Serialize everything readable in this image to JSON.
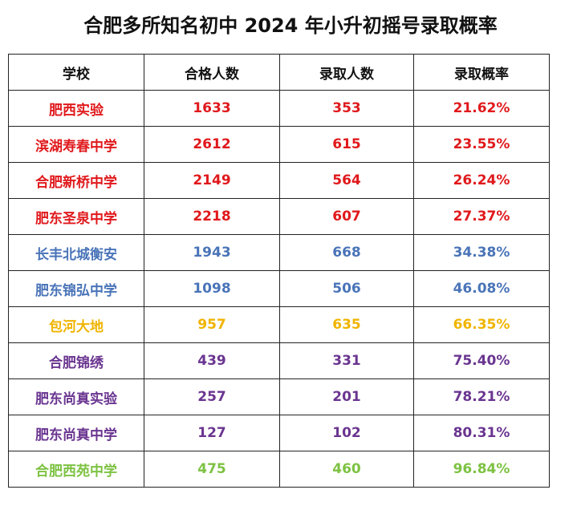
{
  "title": "合肥多所知名初中 2024 年小升初摇号录取概率",
  "colors": {
    "red": "#e0191c",
    "blue": "#4a74b8",
    "gold": "#f0b400",
    "purple": "#6a3590",
    "green": "#7dc242"
  },
  "table": {
    "headers": [
      "学校",
      "合格人数",
      "录取人数",
      "录取概率"
    ],
    "rows": [
      {
        "school": "肥西实验",
        "qualified": "1633",
        "admitted": "353",
        "rate": "21.62%",
        "color": "#e0191c"
      },
      {
        "school": "滨湖寿春中学",
        "qualified": "2612",
        "admitted": "615",
        "rate": "23.55%",
        "color": "#e0191c"
      },
      {
        "school": "合肥新桥中学",
        "qualified": "2149",
        "admitted": "564",
        "rate": "26.24%",
        "color": "#e0191c"
      },
      {
        "school": "肥东圣泉中学",
        "qualified": "2218",
        "admitted": "607",
        "rate": "27.37%",
        "color": "#e0191c"
      },
      {
        "school": "长丰北城衡安",
        "qualified": "1943",
        "admitted": "668",
        "rate": "34.38%",
        "color": "#4a74b8"
      },
      {
        "school": "肥东锦弘中学",
        "qualified": "1098",
        "admitted": "506",
        "rate": "46.08%",
        "color": "#4a74b8"
      },
      {
        "school": "包河大地",
        "qualified": "957",
        "admitted": "635",
        "rate": "66.35%",
        "color": "#f0b400"
      },
      {
        "school": "合肥锦绣",
        "qualified": "439",
        "admitted": "331",
        "rate": "75.40%",
        "color": "#6a3590"
      },
      {
        "school": "肥东尚真实验",
        "qualified": "257",
        "admitted": "201",
        "rate": "78.21%",
        "color": "#6a3590"
      },
      {
        "school": "肥东尚真中学",
        "qualified": "127",
        "admitted": "102",
        "rate": "80.31%",
        "color": "#6a3590"
      },
      {
        "school": "合肥西苑中学",
        "qualified": "475",
        "admitted": "460",
        "rate": "96.84%",
        "color": "#7dc242"
      }
    ]
  }
}
